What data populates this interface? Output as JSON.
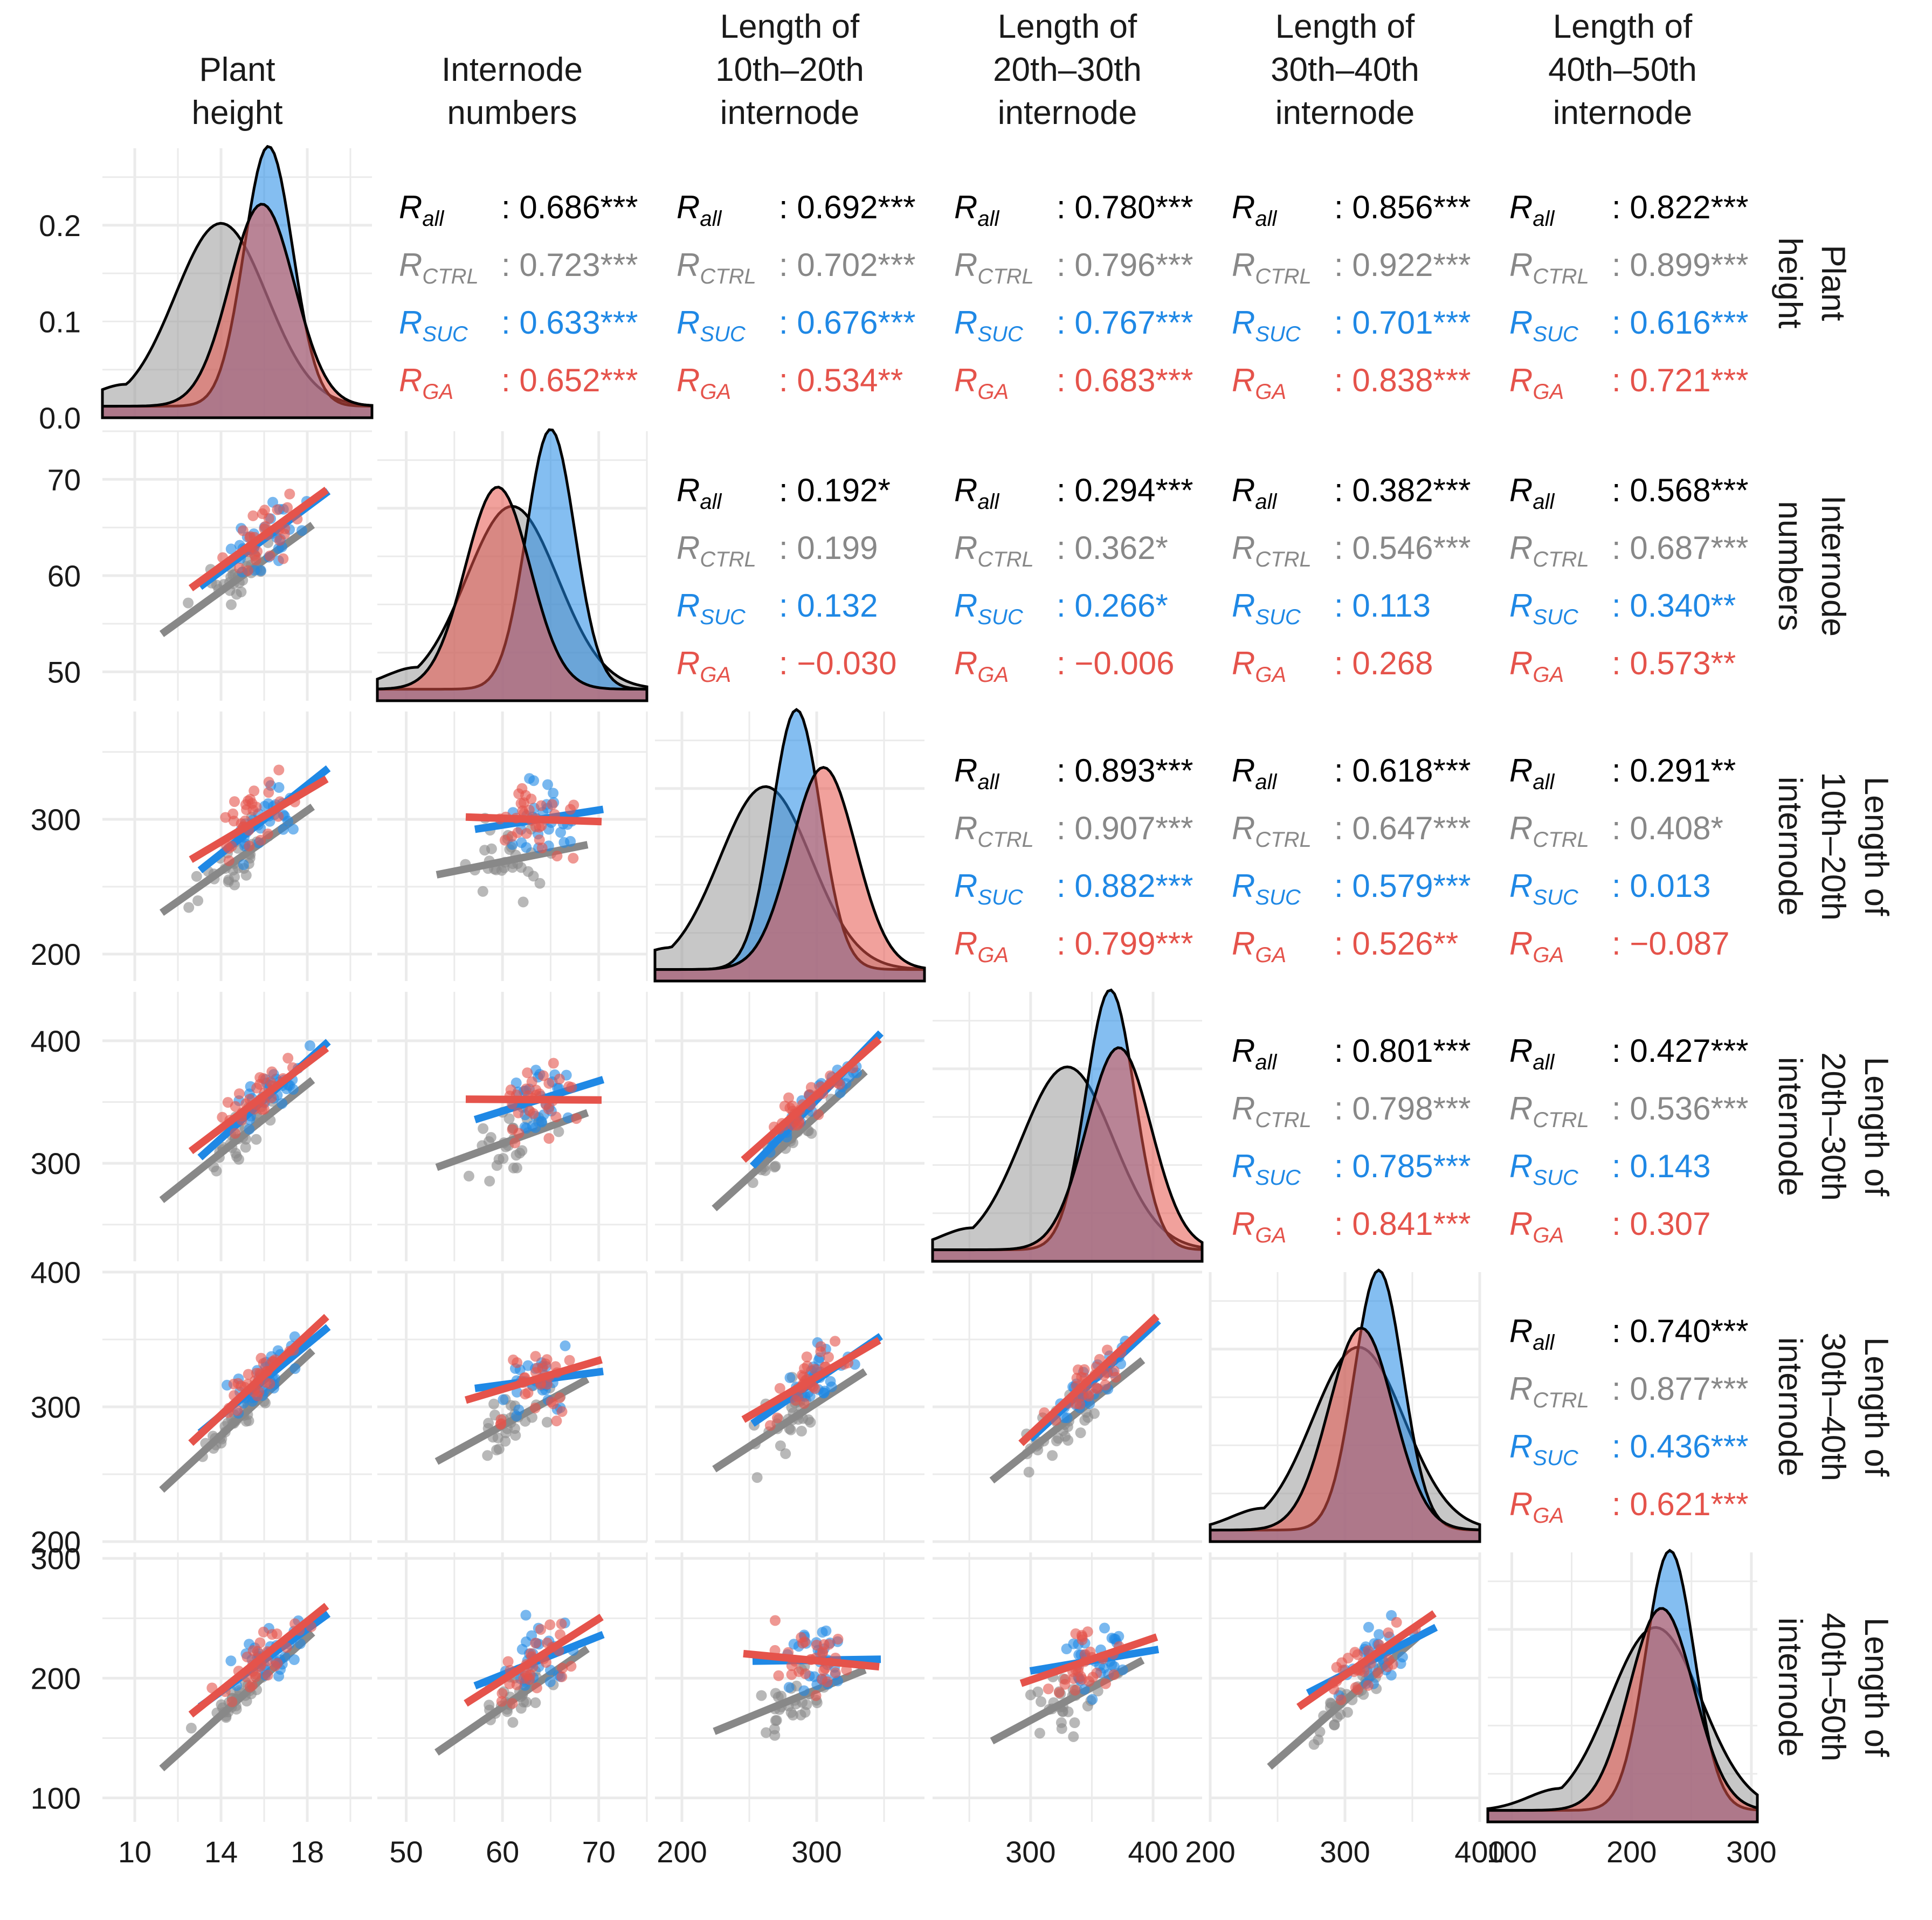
{
  "chart_data": {
    "type": "scatter",
    "title": "",
    "variables": [
      "Plant height",
      "Internode numbers",
      "Length of 10th–20th internode",
      "Length of 20th–30th internode",
      "Length of 30th–40th internode",
      "Length of 40th–50th internode"
    ],
    "column_headers": [
      [
        "Plant",
        "height"
      ],
      [
        "Internode",
        "numbers"
      ],
      [
        "Length of",
        "10th–20th",
        "internode"
      ],
      [
        "Length of",
        "20th–30th",
        "internode"
      ],
      [
        "Length of",
        "30th–40th",
        "internode"
      ],
      [
        "Length of",
        "40th–50th",
        "internode"
      ]
    ],
    "row_headers": [
      [
        "Plant",
        "height"
      ],
      [
        "Internode",
        "numbers"
      ],
      [
        "Length of",
        "10th–20th",
        "internode"
      ],
      [
        "Length of",
        "20th–30th",
        "internode"
      ],
      [
        "Length of",
        "30th–40th",
        "internode"
      ],
      [
        "Length of",
        "40th–50th",
        "internode"
      ]
    ],
    "groups": [
      {
        "key": "all",
        "color": "#000000"
      },
      {
        "key": "CTRL",
        "color": "#888888"
      },
      {
        "key": "SUC",
        "color": "#1f88e5"
      },
      {
        "key": "GA",
        "color": "#e5534b"
      }
    ],
    "axis_ranges": [
      [
        8.5,
        21
      ],
      [
        47,
        75
      ],
      [
        180,
        380
      ],
      [
        220,
        440
      ],
      [
        200,
        400
      ],
      [
        80,
        305
      ]
    ],
    "x_ticks": [
      [
        "10",
        "14",
        "18"
      ],
      [
        "50",
        "60",
        "70"
      ],
      [
        "200",
        "300"
      ],
      [
        "300",
        "400"
      ],
      [
        "200",
        "300",
        "400"
      ],
      [
        "100",
        "200",
        "300"
      ]
    ],
    "x_tick_values": [
      [
        10,
        14,
        18
      ],
      [
        50,
        60,
        70
      ],
      [
        200,
        300
      ],
      [
        300,
        400
      ],
      [
        200,
        300,
        400
      ],
      [
        100,
        200,
        300
      ]
    ],
    "y_ticks": [
      [
        "0.0",
        "0.1",
        "0.2"
      ],
      [
        "50",
        "60",
        "70"
      ],
      [
        "200",
        "300"
      ],
      [
        "300",
        "400"
      ],
      [
        "200",
        "300",
        "400"
      ],
      [
        "100",
        "200",
        "300"
      ]
    ],
    "y_tick_values": [
      [
        0.0,
        0.1,
        0.2
      ],
      [
        50,
        60,
        70
      ],
      [
        200,
        300
      ],
      [
        300,
        400
      ],
      [
        200,
        300,
        400
      ],
      [
        100,
        200,
        300
      ]
    ],
    "density_y_range": [
      0,
      0.28
    ],
    "density_peaks": [
      {
        "CTRL": 14.0,
        "SUC": 16.2,
        "GA": 15.9
      },
      {
        "CTRL": 61.0,
        "SUC": 65.0,
        "GA": 59.5
      },
      {
        "CTRL": 262,
        "SUC": 285,
        "GA": 305
      },
      {
        "CTRL": 330,
        "SUC": 365,
        "GA": 372
      },
      {
        "CTRL": 310,
        "SUC": 325,
        "GA": 312
      },
      {
        "CTRL": 220,
        "SUC": 232,
        "GA": 225
      }
    ],
    "correlations": [
      {
        "row": 1,
        "col": 2,
        "all": "0.686***",
        "CTRL": "0.723***",
        "SUC": "0.633***",
        "GA": "0.652***"
      },
      {
        "row": 1,
        "col": 3,
        "all": "0.692***",
        "CTRL": "0.702***",
        "SUC": "0.676***",
        "GA": "0.534**"
      },
      {
        "row": 1,
        "col": 4,
        "all": "0.780***",
        "CTRL": "0.796***",
        "SUC": "0.767***",
        "GA": "0.683***"
      },
      {
        "row": 1,
        "col": 5,
        "all": "0.856***",
        "CTRL": "0.922***",
        "SUC": "0.701***",
        "GA": "0.838***"
      },
      {
        "row": 1,
        "col": 6,
        "all": "0.822***",
        "CTRL": "0.899***",
        "SUC": "0.616***",
        "GA": "0.721***"
      },
      {
        "row": 2,
        "col": 3,
        "all": "0.192*",
        "CTRL": "0.199",
        "SUC": "0.132",
        "GA": "−0.030"
      },
      {
        "row": 2,
        "col": 4,
        "all": "0.294***",
        "CTRL": "0.362*",
        "SUC": "0.266*",
        "GA": "−0.006"
      },
      {
        "row": 2,
        "col": 5,
        "all": "0.382***",
        "CTRL": "0.546***",
        "SUC": "0.113",
        "GA": "0.268"
      },
      {
        "row": 2,
        "col": 6,
        "all": "0.568***",
        "CTRL": "0.687***",
        "SUC": "0.340**",
        "GA": "0.573**"
      },
      {
        "row": 3,
        "col": 4,
        "all": "0.893***",
        "CTRL": "0.907***",
        "SUC": "0.882***",
        "GA": "0.799***"
      },
      {
        "row": 3,
        "col": 5,
        "all": "0.618***",
        "CTRL": "0.647***",
        "SUC": "0.579***",
        "GA": "0.526**"
      },
      {
        "row": 3,
        "col": 6,
        "all": "0.291**",
        "CTRL": "0.408*",
        "SUC": "0.013",
        "GA": "−0.087"
      },
      {
        "row": 4,
        "col": 5,
        "all": "0.801***",
        "CTRL": "0.798***",
        "SUC": "0.785***",
        "GA": "0.841***"
      },
      {
        "row": 4,
        "col": 6,
        "all": "0.427***",
        "CTRL": "0.536***",
        "SUC": "0.143",
        "GA": "0.307"
      },
      {
        "row": 5,
        "col": 6,
        "all": "0.740***",
        "CTRL": "0.877***",
        "SUC": "0.436***",
        "GA": "0.621***"
      }
    ]
  }
}
